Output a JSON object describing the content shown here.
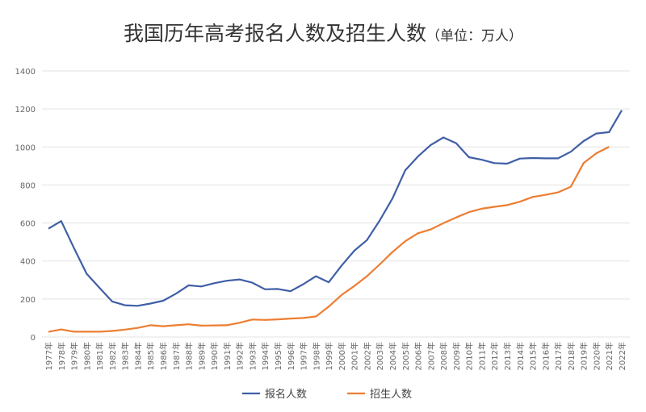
{
  "chart_data": {
    "type": "line",
    "title": "我国历年高考报名人数及招生人数",
    "unit": "（单位：万人）",
    "xlabel": "",
    "ylabel": "",
    "ylim": [
      0,
      1400
    ],
    "yticks": [
      0,
      200,
      400,
      600,
      800,
      1000,
      1200,
      1400
    ],
    "grid": true,
    "legend_position": "bottom",
    "categories": [
      "1977年",
      "1978年",
      "1979年",
      "1980年",
      "1981年",
      "1982年",
      "1983年",
      "1984年",
      "1985年",
      "1986年",
      "1987年",
      "1988年",
      "1989年",
      "1990年",
      "1991年",
      "1992年",
      "1993年",
      "1994年",
      "1995年",
      "1996年",
      "1997年",
      "1998年",
      "1999年",
      "2000年",
      "2001年",
      "2002年",
      "2003年",
      "2004年",
      "2005年",
      "2006年",
      "2007年",
      "2008年",
      "2009年",
      "2010年",
      "2011年",
      "2012年",
      "2013年",
      "2014年",
      "2015年",
      "2016年",
      "2017年",
      "2018年",
      "2019年",
      "2020年",
      "2021年",
      "2022年"
    ],
    "series": [
      {
        "name": "报名人数",
        "color": "#3f5fa6",
        "values": [
          570,
          610,
          468,
          333,
          259,
          187,
          167,
          164,
          176,
          191,
          228,
          272,
          266,
          283,
          296,
          303,
          286,
          251,
          253,
          241,
          278,
          320,
          288,
          375,
          454,
          510,
          613,
          729,
          877,
          950,
          1010,
          1050,
          1020,
          946,
          933,
          915,
          912,
          939,
          942,
          940,
          940,
          975,
          1031,
          1071,
          1078,
          1193
        ]
      },
      {
        "name": "招生人数",
        "color": "#ed7d31",
        "values": [
          27,
          40,
          28,
          28,
          28,
          32,
          39,
          48,
          62,
          57,
          62,
          67,
          60,
          61,
          62,
          75,
          92,
          90,
          93,
          97,
          100,
          108,
          160,
          221,
          268,
          320,
          382,
          447,
          504,
          546,
          566,
          599,
          629,
          657,
          675,
          685,
          694,
          712,
          737,
          748,
          761,
          791,
          915,
          967,
          1001,
          null
        ]
      }
    ]
  }
}
